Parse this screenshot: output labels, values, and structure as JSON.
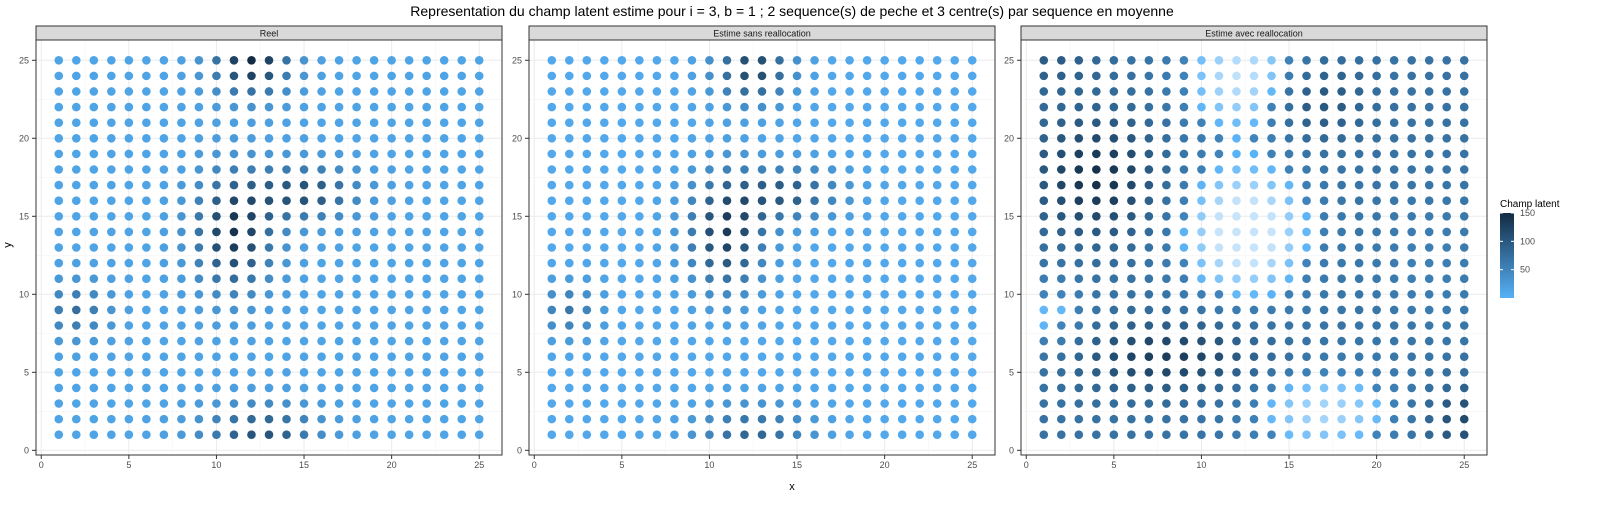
{
  "chart_data": {
    "type": "scatter",
    "title": "Representation du champ latent estime pour i = 3, b = 1 ; 2 sequence(s) de peche et 3 centre(s) par sequence en moyenne",
    "xlabel": "x",
    "ylabel": "y",
    "xlim": [
      -0.3,
      26.3
    ],
    "ylim": [
      -0.3,
      26.3
    ],
    "x_ticks": [
      0,
      5,
      10,
      15,
      20,
      25
    ],
    "y_ticks": [
      0,
      5,
      10,
      15,
      20,
      25
    ],
    "grid": true,
    "grid_size": 25,
    "legend": {
      "title": "Champ latent",
      "position": "right",
      "breaks": [
        50,
        100,
        150
      ],
      "range": [
        0,
        150
      ],
      "low_color": "#56B1F7",
      "high_color": "#132B43"
    },
    "panels": [
      {
        "strip": "Reel",
        "base": 15,
        "centers": [
          {
            "x": 12,
            "y": 25,
            "amp": 135,
            "sx": 1.5,
            "sy": 1.5
          },
          {
            "x": 11,
            "y": 14,
            "amp": 125,
            "sx": 1.5,
            "sy": 2.5
          },
          {
            "x": 15,
            "y": 16.5,
            "amp": 95,
            "sx": 2.0,
            "sy": 1.2
          },
          {
            "x": 2,
            "y": 9,
            "amp": 60,
            "sx": 1.2,
            "sy": 1.2
          },
          {
            "x": 12.5,
            "y": 1,
            "amp": 90,
            "sx": 2.2,
            "sy": 1.3
          }
        ],
        "cells": []
      },
      {
        "strip": "Estime sans reallocation",
        "base": 10,
        "centers": [
          {
            "x": 12.5,
            "y": 24.5,
            "amp": 110,
            "sx": 1.5,
            "sy": 1.5
          },
          {
            "x": 11,
            "y": 14,
            "amp": 120,
            "sx": 1.5,
            "sy": 2.5
          },
          {
            "x": 14.5,
            "y": 16.5,
            "amp": 85,
            "sx": 2.0,
            "sy": 1.2
          },
          {
            "x": 2,
            "y": 9,
            "amp": 55,
            "sx": 1.2,
            "sy": 1.2
          },
          {
            "x": 12.5,
            "y": 1,
            "amp": 75,
            "sx": 2.2,
            "sy": 1.3
          }
        ],
        "cells": []
      },
      {
        "strip": "Estime avec reallocation",
        "base": 70,
        "centers": [
          {
            "x": 4,
            "y": 17.5,
            "amp": 75,
            "sx": 2.2,
            "sy": 2.5
          },
          {
            "x": 8,
            "y": 6,
            "amp": 60,
            "sx": 3.5,
            "sy": 1.5
          },
          {
            "x": 16.5,
            "y": 22.5,
            "amp": 40,
            "sx": 1.8,
            "sy": 1.8
          },
          {
            "x": 25,
            "y": 2,
            "amp": 45,
            "sx": 1.5,
            "sy": 1.5
          },
          {
            "x": 1.5,
            "y": 25,
            "amp": 25,
            "sx": 2.0,
            "sy": 1.5
          },
          {
            "x": 12.5,
            "y": 14,
            "amp": -62,
            "sx": 2.5,
            "sy": 3.0
          },
          {
            "x": 12.5,
            "y": 24,
            "amp": -50,
            "sx": 2.5,
            "sy": 2.5
          },
          {
            "x": 17,
            "y": 2.5,
            "amp": -42,
            "sx": 3.0,
            "sy": 2.0
          },
          {
            "x": 1.5,
            "y": 8.5,
            "amp": -28,
            "sx": 1.5,
            "sy": 2.0
          },
          {
            "x": 23,
            "y": 12,
            "amp": -15,
            "sx": 2.5,
            "sy": 3.0
          }
        ],
        "cells": []
      }
    ]
  }
}
